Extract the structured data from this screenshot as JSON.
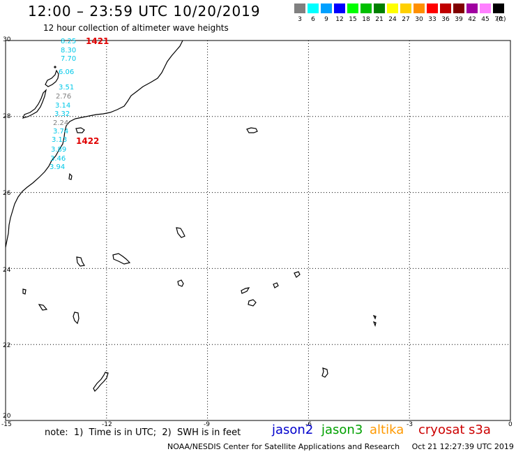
{
  "header": {
    "title": "12:00 – 23:59 UTC 10/20/2019",
    "subtitle": "12 hour collection of altimeter wave heights"
  },
  "legend": {
    "unit": "(ft)",
    "bins": [
      {
        "label": "3",
        "color": "#808080"
      },
      {
        "label": "6",
        "color": "#00ffff"
      },
      {
        "label": "9",
        "color": "#00a0ff"
      },
      {
        "label": "12",
        "color": "#0000ff"
      },
      {
        "label": "15",
        "color": "#00ff00"
      },
      {
        "label": "18",
        "color": "#00c000"
      },
      {
        "label": "21",
        "color": "#008000"
      },
      {
        "label": "24",
        "color": "#ffff00"
      },
      {
        "label": "27",
        "color": "#ffd000"
      },
      {
        "label": "30",
        "color": "#ff9000"
      },
      {
        "label": "33",
        "color": "#ff0000"
      },
      {
        "label": "36",
        "color": "#c00000"
      },
      {
        "label": "39",
        "color": "#800000"
      },
      {
        "label": "42",
        "color": "#a000a0"
      },
      {
        "label": "45",
        "color": "#ff80ff"
      },
      {
        "label": "70",
        "color": "#000000"
      }
    ]
  },
  "axes": {
    "lat_labels": [
      "30",
      "28",
      "26",
      "24",
      "22",
      "20"
    ],
    "lon_labels": [
      "-15",
      "-12",
      "-9",
      "-6",
      "-3",
      "0"
    ]
  },
  "track": {
    "passes": [
      {
        "time": "1421",
        "color": "#e00000"
      },
      {
        "time": "1422",
        "color": "#e00000"
      }
    ],
    "readings": [
      {
        "value": "8.25",
        "color": "#00c8e8"
      },
      {
        "value": "8.30",
        "color": "#00c8e8"
      },
      {
        "value": "7.70",
        "color": "#00c8e8"
      },
      {
        "value": "6.06",
        "color": "#00c8e8"
      },
      {
        "value": "3.51",
        "color": "#00c8e8"
      },
      {
        "value": "2.76",
        "color": "#808080"
      },
      {
        "value": "3.14",
        "color": "#00c8e8"
      },
      {
        "value": "3.32",
        "color": "#00c8e8"
      },
      {
        "value": "2.24",
        "color": "#808080"
      },
      {
        "value": "3.74",
        "color": "#00c8e8"
      },
      {
        "value": "3.13",
        "color": "#00c8e8"
      },
      {
        "value": "3.89",
        "color": "#00c8e8"
      },
      {
        "value": "3.46",
        "color": "#00c8e8"
      },
      {
        "value": "3.94",
        "color": "#00c8e8"
      }
    ]
  },
  "footer": {
    "note": "note:  1)  Time is in UTC;  2)  SWH is in feet",
    "satellites": [
      {
        "name": "jason2",
        "color": "#0000cc"
      },
      {
        "name": "jason3",
        "color": "#00a000"
      },
      {
        "name": "altika",
        "color": "#ff9900"
      },
      {
        "name": "cryosat",
        "color": "#cc0000"
      },
      {
        "name": "s3a",
        "color": "#cc0000"
      }
    ],
    "credit": "NOAA/NESDIS Center for Satellite Applications and Research     Oct 21 12:27:39 UTC 2019"
  }
}
